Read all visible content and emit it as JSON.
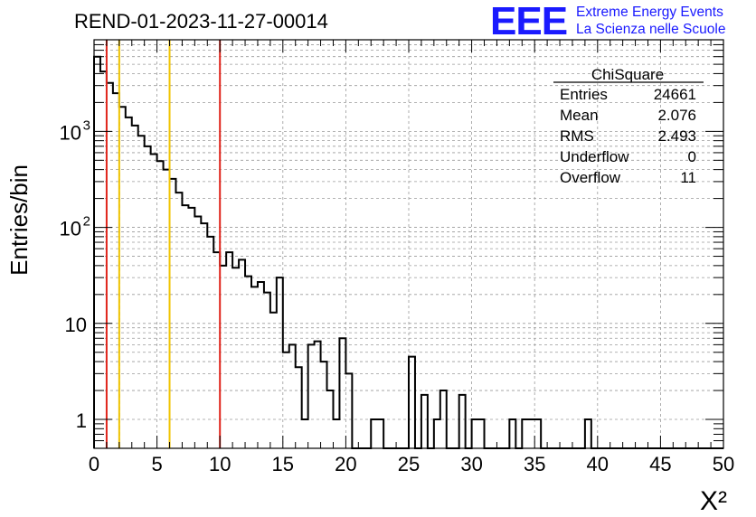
{
  "chart_data": {
    "type": "bar",
    "style": "step-histogram",
    "title": "REND-01-2023-11-27-00014",
    "xlabel": "X²",
    "ylabel": "Entries/bin",
    "xlim": [
      0,
      50
    ],
    "ylim": [
      0.5,
      9000
    ],
    "log_y": true,
    "grid": true,
    "bin_width": 0.5,
    "x_ticks": [
      "0",
      "5",
      "10",
      "15",
      "20",
      "25",
      "30",
      "35",
      "40",
      "45",
      "50"
    ],
    "y_ticks": [
      {
        "value": 1,
        "label": "1"
      },
      {
        "value": 10,
        "label": "10"
      },
      {
        "value": 100,
        "label": "10",
        "exp": "2"
      },
      {
        "value": 1000,
        "label": "10",
        "exp": "3"
      }
    ],
    "values": [
      6000,
      4200,
      3200,
      2500,
      1800,
      1400,
      1150,
      900,
      700,
      580,
      490,
      400,
      320,
      230,
      170,
      160,
      130,
      110,
      80,
      55,
      40,
      55,
      38,
      46,
      31,
      24,
      27,
      21,
      13,
      30,
      5,
      6,
      3.5,
      1,
      6,
      6.5,
      4,
      2,
      1,
      7,
      3,
      0.5,
      0.5,
      0,
      1,
      1,
      0,
      0.5,
      0,
      0,
      4.5,
      0,
      1.8,
      0,
      1,
      2,
      0.5,
      0,
      1.8,
      0,
      1,
      1,
      0,
      0,
      0,
      0,
      1,
      0,
      1,
      1,
      1,
      0,
      0,
      0,
      0,
      0,
      0,
      0,
      1,
      0,
      0,
      0,
      0,
      0,
      0,
      0,
      0,
      0,
      0,
      0,
      0,
      0,
      0,
      0,
      0,
      0,
      0,
      0,
      0,
      0
    ],
    "vlines": [
      {
        "x": 1,
        "color": "#e0241b",
        "dashed": false
      },
      {
        "x": 2,
        "color": "#000000",
        "dashed": true
      },
      {
        "x": 2,
        "color": "#f0c400",
        "dashed": false
      },
      {
        "x": 6,
        "color": "#f0c400",
        "dashed": false
      },
      {
        "x": 10,
        "color": "#e0241b",
        "dashed": false
      }
    ]
  },
  "stats": {
    "title": "ChiSquare",
    "rows": [
      {
        "label": "Entries",
        "value": "24661"
      },
      {
        "label": "Mean",
        "value": "2.076"
      },
      {
        "label": "RMS",
        "value": "2.493"
      },
      {
        "label": "Underflow",
        "value": "0"
      },
      {
        "label": "Overflow",
        "value": "11"
      }
    ]
  },
  "logo": {
    "text": "EEE",
    "line1": "Extreme Energy Events",
    "line2": "La Scienza nelle Scuole",
    "color": "#1a1aff"
  }
}
